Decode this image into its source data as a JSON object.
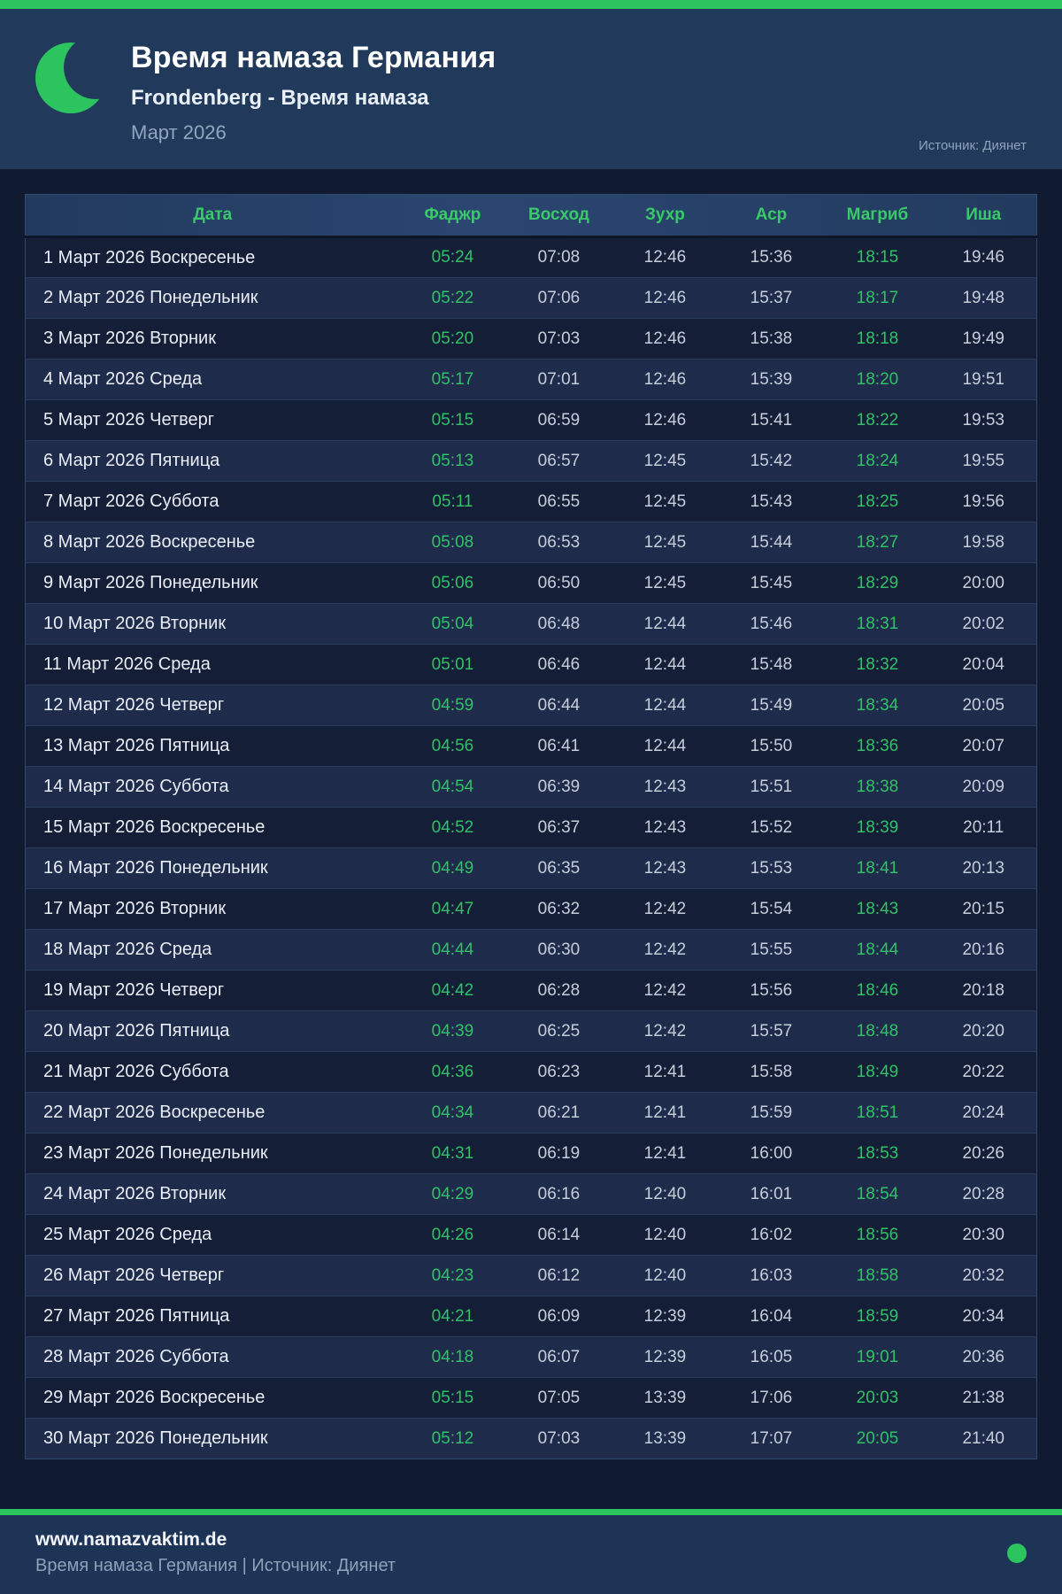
{
  "header": {
    "title": "Время намаза Германия",
    "subtitle": "Frondenberg - Время намаза",
    "month": "Март 2026",
    "source": "Источник: Диянет"
  },
  "colors": {
    "accent_green": "#2bc45e",
    "time_green": "#30c166",
    "header_green": "#38c968",
    "page_bg": "#101b31",
    "panel_bg": "#213a5c",
    "row_odd": "#141e37",
    "row_even": "#1e2b4a",
    "footer_bg": "#1d3456"
  },
  "table": {
    "columns": [
      "Дата",
      "Фаджр",
      "Восход",
      "Зухр",
      "Аср",
      "Магриб",
      "Иша"
    ],
    "rows": [
      [
        "1 Март 2026 Воскресенье",
        "05:24",
        "07:08",
        "12:46",
        "15:36",
        "18:15",
        "19:46"
      ],
      [
        "2 Март 2026 Понедельник",
        "05:22",
        "07:06",
        "12:46",
        "15:37",
        "18:17",
        "19:48"
      ],
      [
        "3 Март 2026 Вторник",
        "05:20",
        "07:03",
        "12:46",
        "15:38",
        "18:18",
        "19:49"
      ],
      [
        "4 Март 2026 Среда",
        "05:17",
        "07:01",
        "12:46",
        "15:39",
        "18:20",
        "19:51"
      ],
      [
        "5 Март 2026 Четверг",
        "05:15",
        "06:59",
        "12:46",
        "15:41",
        "18:22",
        "19:53"
      ],
      [
        "6 Март 2026 Пятница",
        "05:13",
        "06:57",
        "12:45",
        "15:42",
        "18:24",
        "19:55"
      ],
      [
        "7 Март 2026 Суббота",
        "05:11",
        "06:55",
        "12:45",
        "15:43",
        "18:25",
        "19:56"
      ],
      [
        "8 Март 2026 Воскресенье",
        "05:08",
        "06:53",
        "12:45",
        "15:44",
        "18:27",
        "19:58"
      ],
      [
        "9 Март 2026 Понедельник",
        "05:06",
        "06:50",
        "12:45",
        "15:45",
        "18:29",
        "20:00"
      ],
      [
        "10 Март 2026 Вторник",
        "05:04",
        "06:48",
        "12:44",
        "15:46",
        "18:31",
        "20:02"
      ],
      [
        "11 Март 2026 Среда",
        "05:01",
        "06:46",
        "12:44",
        "15:48",
        "18:32",
        "20:04"
      ],
      [
        "12 Март 2026 Четверг",
        "04:59",
        "06:44",
        "12:44",
        "15:49",
        "18:34",
        "20:05"
      ],
      [
        "13 Март 2026 Пятница",
        "04:56",
        "06:41",
        "12:44",
        "15:50",
        "18:36",
        "20:07"
      ],
      [
        "14 Март 2026 Суббота",
        "04:54",
        "06:39",
        "12:43",
        "15:51",
        "18:38",
        "20:09"
      ],
      [
        "15 Март 2026 Воскресенье",
        "04:52",
        "06:37",
        "12:43",
        "15:52",
        "18:39",
        "20:11"
      ],
      [
        "16 Март 2026 Понедельник",
        "04:49",
        "06:35",
        "12:43",
        "15:53",
        "18:41",
        "20:13"
      ],
      [
        "17 Март 2026 Вторник",
        "04:47",
        "06:32",
        "12:42",
        "15:54",
        "18:43",
        "20:15"
      ],
      [
        "18 Март 2026 Среда",
        "04:44",
        "06:30",
        "12:42",
        "15:55",
        "18:44",
        "20:16"
      ],
      [
        "19 Март 2026 Четверг",
        "04:42",
        "06:28",
        "12:42",
        "15:56",
        "18:46",
        "20:18"
      ],
      [
        "20 Март 2026 Пятница",
        "04:39",
        "06:25",
        "12:42",
        "15:57",
        "18:48",
        "20:20"
      ],
      [
        "21 Март 2026 Суббота",
        "04:36",
        "06:23",
        "12:41",
        "15:58",
        "18:49",
        "20:22"
      ],
      [
        "22 Март 2026 Воскресенье",
        "04:34",
        "06:21",
        "12:41",
        "15:59",
        "18:51",
        "20:24"
      ],
      [
        "23 Март 2026 Понедельник",
        "04:31",
        "06:19",
        "12:41",
        "16:00",
        "18:53",
        "20:26"
      ],
      [
        "24 Март 2026 Вторник",
        "04:29",
        "06:16",
        "12:40",
        "16:01",
        "18:54",
        "20:28"
      ],
      [
        "25 Март 2026 Среда",
        "04:26",
        "06:14",
        "12:40",
        "16:02",
        "18:56",
        "20:30"
      ],
      [
        "26 Март 2026 Четверг",
        "04:23",
        "06:12",
        "12:40",
        "16:03",
        "18:58",
        "20:32"
      ],
      [
        "27 Март 2026 Пятница",
        "04:21",
        "06:09",
        "12:39",
        "16:04",
        "18:59",
        "20:34"
      ],
      [
        "28 Март 2026 Суббота",
        "04:18",
        "06:07",
        "12:39",
        "16:05",
        "19:01",
        "20:36"
      ],
      [
        "29 Март 2026 Воскресенье",
        "05:15",
        "07:05",
        "13:39",
        "17:06",
        "20:03",
        "21:38"
      ],
      [
        "30 Март 2026 Понедельник",
        "05:12",
        "07:03",
        "13:39",
        "17:07",
        "20:05",
        "21:40"
      ]
    ]
  },
  "footer": {
    "website": "www.namazvaktim.de",
    "tagline": "Время намаза Германия | Источник: Диянет"
  }
}
